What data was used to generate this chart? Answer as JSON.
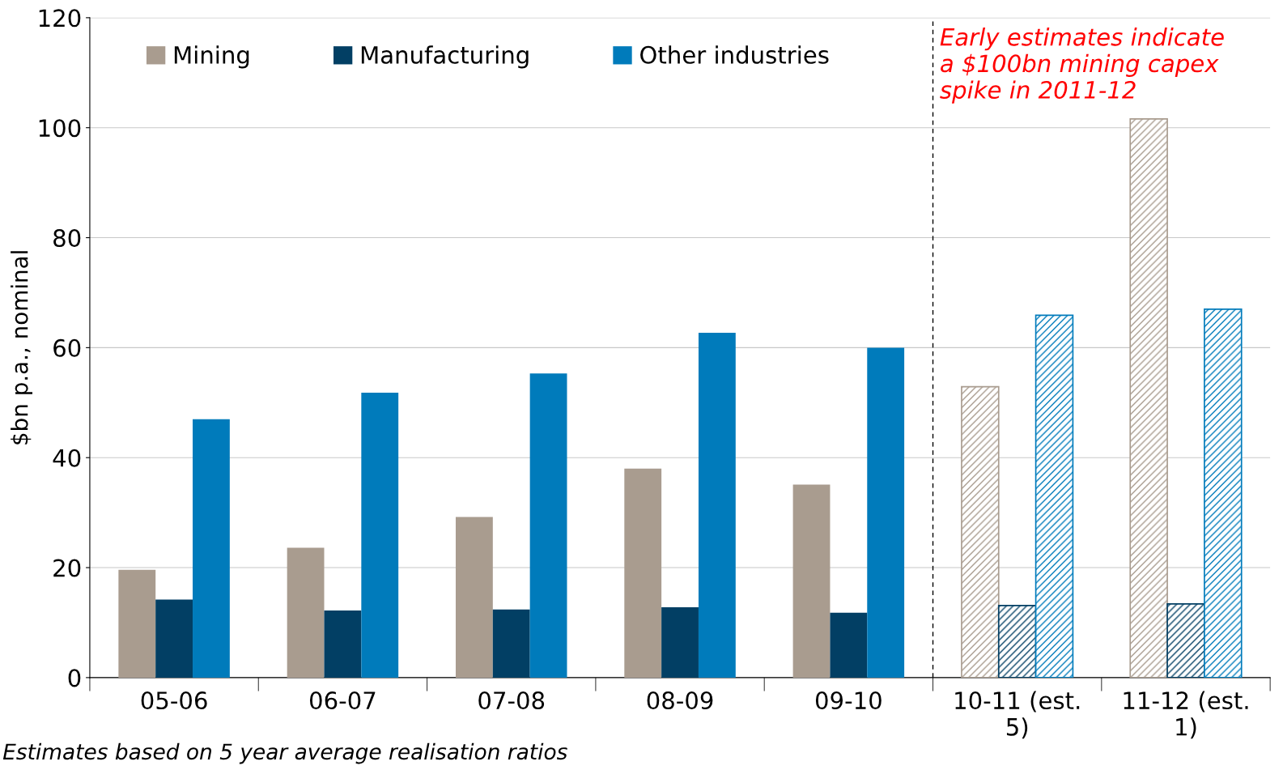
{
  "chart_data": {
    "type": "bar",
    "ylabel": "$bn p.a., nominal",
    "categories": [
      "05-06",
      "06-07",
      "07-08",
      "08-09",
      "09-10",
      "10-11 (est.\n5)",
      "11-12 (est.\n1)"
    ],
    "series": [
      {
        "name": "Mining",
        "color": "#a99c8f",
        "values": [
          19.6,
          23.6,
          29.2,
          38.0,
          35.1,
          52.9,
          101.6
        ]
      },
      {
        "name": "Manufacturing",
        "color": "#023f64",
        "values": [
          14.2,
          12.2,
          12.4,
          12.8,
          11.8,
          13.1,
          13.4
        ]
      },
      {
        "name": "Other industries",
        "color": "#007bbb",
        "values": [
          47.0,
          51.8,
          55.3,
          62.7,
          60.0,
          65.9,
          67.0
        ]
      }
    ],
    "ylim": [
      0,
      120
    ],
    "yticks": [
      0,
      20,
      40,
      60,
      80,
      100,
      120
    ],
    "grid": "y",
    "legend": "top left",
    "annotations": [
      "Early estimates indicate\na $100bn mining capex\nspike in 2011-12",
      "Estimates based on 5 year average realisation ratios"
    ]
  }
}
